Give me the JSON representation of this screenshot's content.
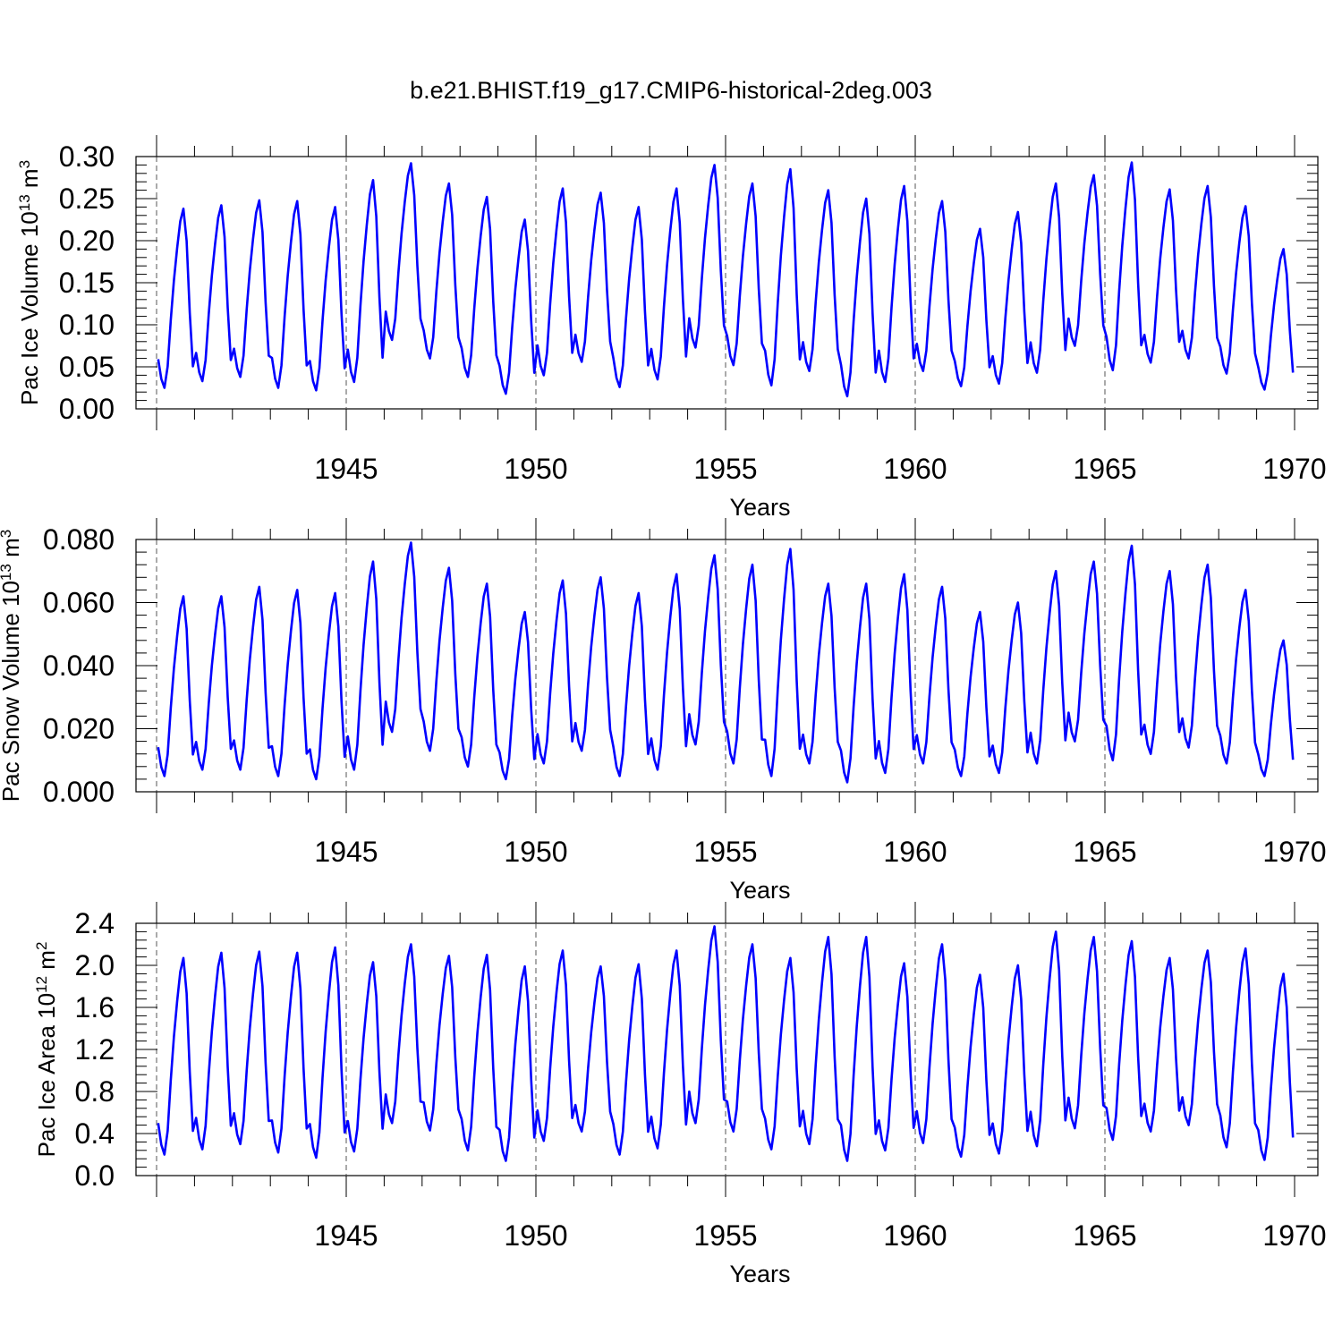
{
  "title": "b.e21.BHIST.f19_g17.CMIP6-historical-2deg.003",
  "chart_data": [
    {
      "type": "line",
      "series_color": "#0000ff",
      "ylabel": {
        "base": "Pac Ice Volume 10",
        "exp": "13",
        "unit": " m",
        "unit_exp": "3"
      },
      "xlabel": "Years",
      "xlim": [
        1940.0,
        1970.0
      ],
      "ylim": [
        0.0,
        0.3
      ],
      "x_ticks": [
        "1945",
        "1950",
        "1955",
        "1960",
        "1965",
        "1970"
      ],
      "y_ticks": [
        "0.00",
        "0.05",
        "0.10",
        "0.15",
        "0.20",
        "0.25",
        "0.30"
      ],
      "grid": "dashed verticals at labelled years",
      "annual_min": [
        0.025,
        0.033,
        0.038,
        0.025,
        0.022,
        0.032,
        0.082,
        0.06,
        0.038,
        0.018,
        0.04,
        0.056,
        0.026,
        0.035,
        0.073,
        0.052,
        0.028,
        0.045,
        0.015,
        0.032,
        0.045,
        0.027,
        0.03,
        0.043,
        0.075,
        0.046,
        0.055,
        0.06,
        0.042,
        0.023
      ],
      "annual_max": [
        0.238,
        0.242,
        0.248,
        0.247,
        0.24,
        0.272,
        0.292,
        0.268,
        0.252,
        0.225,
        0.262,
        0.257,
        0.24,
        0.262,
        0.29,
        0.268,
        0.285,
        0.26,
        0.25,
        0.265,
        0.247,
        0.214,
        0.234,
        0.268,
        0.278,
        0.293,
        0.261,
        0.265,
        0.241,
        0.19
      ]
    },
    {
      "type": "line",
      "series_color": "#0000ff",
      "ylabel": {
        "base": "Pac Snow Volume 10",
        "exp": "13",
        "unit": " m",
        "unit_exp": "3"
      },
      "xlabel": "Years",
      "xlim": [
        1940.0,
        1970.0
      ],
      "ylim": [
        0.0,
        0.08
      ],
      "x_ticks": [
        "1945",
        "1950",
        "1955",
        "1960",
        "1965",
        "1970"
      ],
      "y_ticks": [
        "0.000",
        "0.020",
        "0.040",
        "0.060",
        "0.080"
      ],
      "grid": "dashed verticals at labelled years",
      "annual_min": [
        0.005,
        0.007,
        0.007,
        0.005,
        0.004,
        0.007,
        0.019,
        0.013,
        0.008,
        0.004,
        0.009,
        0.013,
        0.005,
        0.007,
        0.015,
        0.009,
        0.005,
        0.009,
        0.003,
        0.006,
        0.009,
        0.005,
        0.006,
        0.009,
        0.016,
        0.01,
        0.012,
        0.014,
        0.009,
        0.005
      ],
      "annual_max": [
        0.062,
        0.062,
        0.065,
        0.064,
        0.063,
        0.073,
        0.079,
        0.071,
        0.066,
        0.057,
        0.067,
        0.068,
        0.063,
        0.069,
        0.075,
        0.072,
        0.077,
        0.066,
        0.066,
        0.069,
        0.065,
        0.057,
        0.06,
        0.07,
        0.073,
        0.078,
        0.07,
        0.072,
        0.064,
        0.048
      ]
    },
    {
      "type": "line",
      "series_color": "#0000ff",
      "ylabel": {
        "base": "Pac Ice Area 10",
        "exp": "12",
        "unit": " m",
        "unit_exp": "2"
      },
      "xlabel": "Years",
      "xlim": [
        1940.0,
        1970.0
      ],
      "ylim": [
        0.0,
        2.4
      ],
      "x_ticks": [
        "1945",
        "1950",
        "1955",
        "1960",
        "1965",
        "1970"
      ],
      "y_ticks": [
        "0.0",
        "0.4",
        "0.8",
        "1.2",
        "1.6",
        "2.0",
        "2.4"
      ],
      "grid": "dashed verticals at labelled years",
      "annual_min": [
        0.2,
        0.25,
        0.3,
        0.22,
        0.17,
        0.23,
        0.5,
        0.43,
        0.24,
        0.14,
        0.33,
        0.42,
        0.2,
        0.26,
        0.5,
        0.42,
        0.25,
        0.3,
        0.14,
        0.24,
        0.31,
        0.18,
        0.21,
        0.28,
        0.45,
        0.34,
        0.42,
        0.48,
        0.27,
        0.15
      ],
      "annual_max": [
        2.07,
        2.12,
        2.13,
        2.12,
        2.17,
        2.03,
        2.2,
        2.09,
        2.1,
        1.99,
        2.14,
        1.99,
        2.01,
        2.14,
        2.37,
        2.2,
        2.07,
        2.27,
        2.27,
        2.02,
        2.2,
        1.91,
        2.0,
        2.32,
        2.27,
        2.23,
        2.07,
        2.14,
        2.16,
        1.92
      ]
    }
  ]
}
